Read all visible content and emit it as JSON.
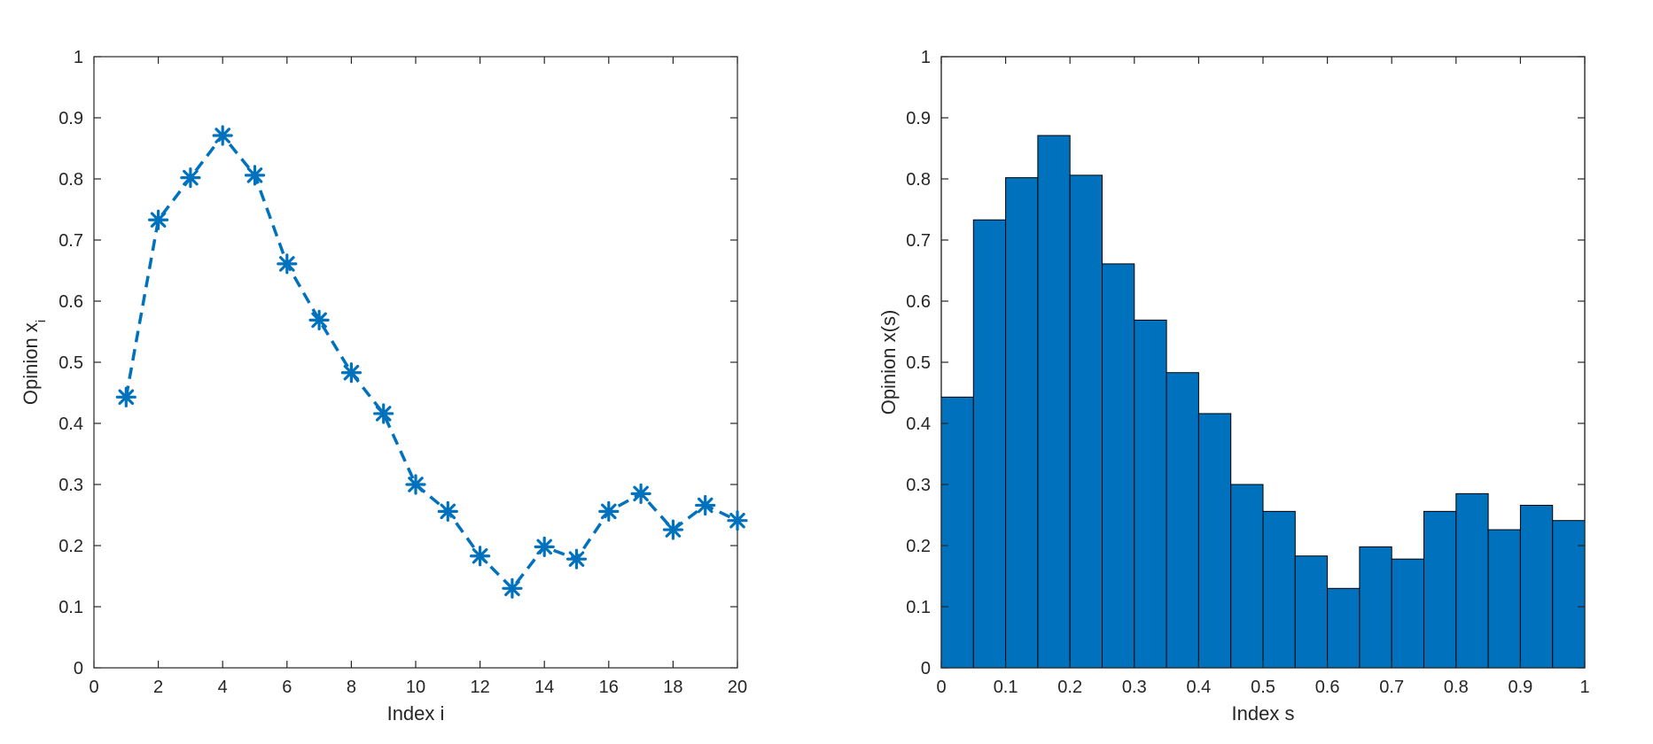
{
  "colors": {
    "series": "#0072BD",
    "axis": "#262626",
    "bar_edge": "#000000"
  },
  "chart_data": [
    {
      "type": "line",
      "line_style": "dashed",
      "marker": "asterisk",
      "xlabel": "Index i",
      "ylabel_main": "Opinion x",
      "ylabel_sub": "i",
      "xlim": [
        0,
        20
      ],
      "ylim": [
        0,
        1
      ],
      "xticks": [
        0,
        2,
        4,
        6,
        8,
        10,
        12,
        14,
        16,
        18,
        20
      ],
      "xtick_labels": [
        "0",
        "2",
        "4",
        "6",
        "8",
        "10",
        "12",
        "14",
        "16",
        "18",
        "20"
      ],
      "yticks": [
        0,
        0.1,
        0.2,
        0.3,
        0.4,
        0.5,
        0.6,
        0.7,
        0.8,
        0.9,
        1
      ],
      "ytick_labels": [
        "0",
        "0.1",
        "0.2",
        "0.3",
        "0.4",
        "0.5",
        "0.6",
        "0.7",
        "0.8",
        "0.9",
        "1"
      ],
      "x": [
        1,
        2,
        3,
        4,
        5,
        6,
        7,
        8,
        9,
        10,
        11,
        12,
        13,
        14,
        15,
        16,
        17,
        18,
        19,
        20
      ],
      "y": [
        0.443,
        0.733,
        0.802,
        0.871,
        0.806,
        0.661,
        0.569,
        0.483,
        0.416,
        0.3,
        0.256,
        0.183,
        0.13,
        0.198,
        0.178,
        0.256,
        0.285,
        0.226,
        0.266,
        0.241
      ],
      "grid": false
    },
    {
      "type": "bar",
      "bar_style": "step",
      "xlabel": "Index s",
      "ylabel": "Opinion x(s)",
      "xlim": [
        0,
        1
      ],
      "ylim": [
        0,
        1
      ],
      "xticks": [
        0,
        0.1,
        0.2,
        0.3,
        0.4,
        0.5,
        0.6,
        0.7,
        0.8,
        0.9,
        1
      ],
      "xtick_labels": [
        "0",
        "0.1",
        "0.2",
        "0.3",
        "0.4",
        "0.5",
        "0.6",
        "0.7",
        "0.8",
        "0.9",
        "1"
      ],
      "yticks": [
        0,
        0.1,
        0.2,
        0.3,
        0.4,
        0.5,
        0.6,
        0.7,
        0.8,
        0.9,
        1
      ],
      "ytick_labels": [
        "0",
        "0.1",
        "0.2",
        "0.3",
        "0.4",
        "0.5",
        "0.6",
        "0.7",
        "0.8",
        "0.9",
        "1"
      ],
      "bin_edges": [
        0,
        0.05,
        0.1,
        0.15,
        0.2,
        0.25,
        0.3,
        0.35,
        0.4,
        0.45,
        0.5,
        0.55,
        0.6,
        0.65,
        0.7,
        0.75,
        0.8,
        0.85,
        0.9,
        0.95,
        1
      ],
      "values": [
        0.443,
        0.733,
        0.802,
        0.871,
        0.806,
        0.661,
        0.569,
        0.483,
        0.416,
        0.3,
        0.256,
        0.183,
        0.13,
        0.198,
        0.178,
        0.256,
        0.285,
        0.226,
        0.266,
        0.241
      ],
      "grid": false
    }
  ]
}
